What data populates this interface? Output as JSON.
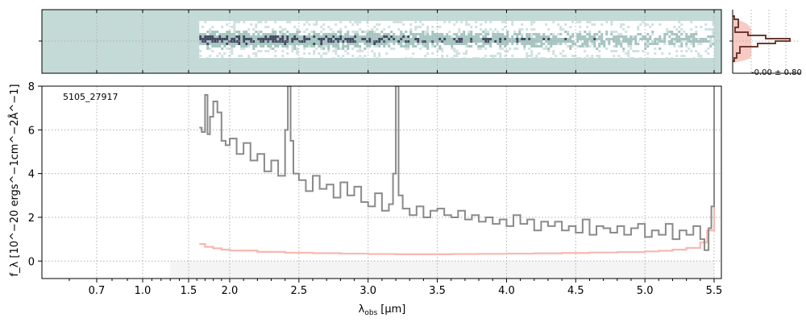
{
  "chart_data": [
    {
      "panel": "2d-spectrum",
      "type": "heatmap",
      "xlim": [
        0.5,
        5.55
      ],
      "background_color": "#c4dad7",
      "data_colors": [
        "#ffffff",
        "#8fb6b0",
        "#2e3550"
      ],
      "data_range_um": [
        1.63,
        5.5
      ],
      "grid": true
    },
    {
      "panel": "profile",
      "type": "line",
      "annotation": "-0.00 ± 0.80",
      "profile_color": "#6b3b33",
      "band_color": "#f7b8b0",
      "grid": true
    },
    {
      "panel": "1d-spectrum",
      "type": "line",
      "annotation": "5105_27917",
      "xlabel_base": "λ",
      "xlabel_sub": "obs",
      "xlabel_unit": "[μm]",
      "ylabel": "f_λ [10^−20 ergs^−1cm^−2Å^−1]",
      "xlim": [
        0.5,
        5.55
      ],
      "ylim": [
        -0.8,
        8.0
      ],
      "x_scale": "custom-compressed below 1.5 μm",
      "x_ticks": [
        0.7,
        1.0,
        1.5,
        2.0,
        2.5,
        3.0,
        3.5,
        4.0,
        4.5,
        5.0,
        5.5
      ],
      "x_tick_labels": [
        "0.7",
        "1.0",
        "1.5",
        "2.0",
        "2.5",
        "3.0",
        "3.5",
        "4.0",
        "4.5",
        "5.0",
        "5.5"
      ],
      "y_ticks": [
        0,
        2,
        4,
        6,
        8
      ],
      "y_tick_labels": [
        "0",
        "2",
        "4",
        "6",
        "8"
      ],
      "grid": true,
      "shaded_band": {
        "x": [
          1.3,
          5.5
        ],
        "y": [
          -0.8,
          0.0
        ],
        "color": "#f4f4f4"
      },
      "series": [
        {
          "color": "#8a8a8a",
          "x": [
            1.63,
            1.66,
            1.7,
            1.73,
            1.76,
            1.8,
            1.85,
            1.9,
            1.95,
            2.0,
            2.05,
            2.1,
            2.15,
            2.2,
            2.25,
            2.3,
            2.35,
            2.4,
            2.42,
            2.44,
            2.46,
            2.5,
            2.55,
            2.6,
            2.65,
            2.7,
            2.75,
            2.8,
            2.85,
            2.9,
            2.95,
            3.0,
            3.05,
            3.1,
            3.15,
            3.18,
            3.2,
            3.22,
            3.25,
            3.3,
            3.35,
            3.4,
            3.45,
            3.5,
            3.55,
            3.6,
            3.65,
            3.7,
            3.75,
            3.8,
            3.85,
            3.9,
            3.95,
            4.0,
            4.05,
            4.1,
            4.15,
            4.2,
            4.25,
            4.3,
            4.35,
            4.4,
            4.45,
            4.5,
            4.55,
            4.6,
            4.65,
            4.7,
            4.75,
            4.8,
            4.85,
            4.9,
            4.95,
            5.0,
            5.05,
            5.1,
            5.15,
            5.2,
            5.25,
            5.3,
            5.35,
            5.4,
            5.43,
            5.46,
            5.48,
            5.5
          ],
          "y": [
            6.1,
            5.9,
            7.6,
            5.8,
            6.6,
            7.3,
            6.8,
            5.5,
            5.3,
            5.6,
            4.9,
            5.4,
            4.6,
            4.9,
            4.1,
            4.6,
            3.9,
            6.0,
            8.0,
            5.5,
            4.0,
            3.7,
            3.2,
            3.9,
            3.3,
            3.5,
            2.9,
            3.6,
            3.0,
            3.4,
            2.7,
            2.5,
            3.1,
            2.3,
            2.6,
            4.0,
            8.0,
            3.0,
            2.4,
            2.1,
            2.5,
            2.0,
            2.3,
            2.4,
            2.1,
            2.0,
            2.3,
            1.9,
            2.1,
            1.8,
            2.0,
            1.7,
            1.9,
            1.6,
            2.1,
            1.7,
            1.9,
            1.4,
            1.8,
            1.6,
            1.8,
            1.4,
            1.6,
            1.3,
            1.9,
            1.2,
            1.6,
            1.5,
            1.3,
            1.6,
            1.2,
            1.5,
            1.7,
            1.1,
            1.4,
            1.2,
            1.7,
            1.0,
            1.4,
            1.2,
            1.6,
            1.0,
            0.5,
            1.5,
            2.5,
            8.0
          ]
        },
        {
          "color": "#f7b8b0",
          "x": [
            1.63,
            1.7,
            1.8,
            1.9,
            2.0,
            2.2,
            2.4,
            2.6,
            2.8,
            3.0,
            3.2,
            3.4,
            3.6,
            3.8,
            4.0,
            4.2,
            4.4,
            4.6,
            4.8,
            5.0,
            5.1,
            5.2,
            5.3,
            5.4,
            5.45,
            5.5
          ],
          "y": [
            0.78,
            0.65,
            0.58,
            0.52,
            0.48,
            0.42,
            0.38,
            0.36,
            0.34,
            0.32,
            0.31,
            0.31,
            0.32,
            0.33,
            0.34,
            0.35,
            0.37,
            0.39,
            0.41,
            0.44,
            0.47,
            0.52,
            0.6,
            0.85,
            1.4,
            4.2
          ]
        }
      ]
    }
  ]
}
